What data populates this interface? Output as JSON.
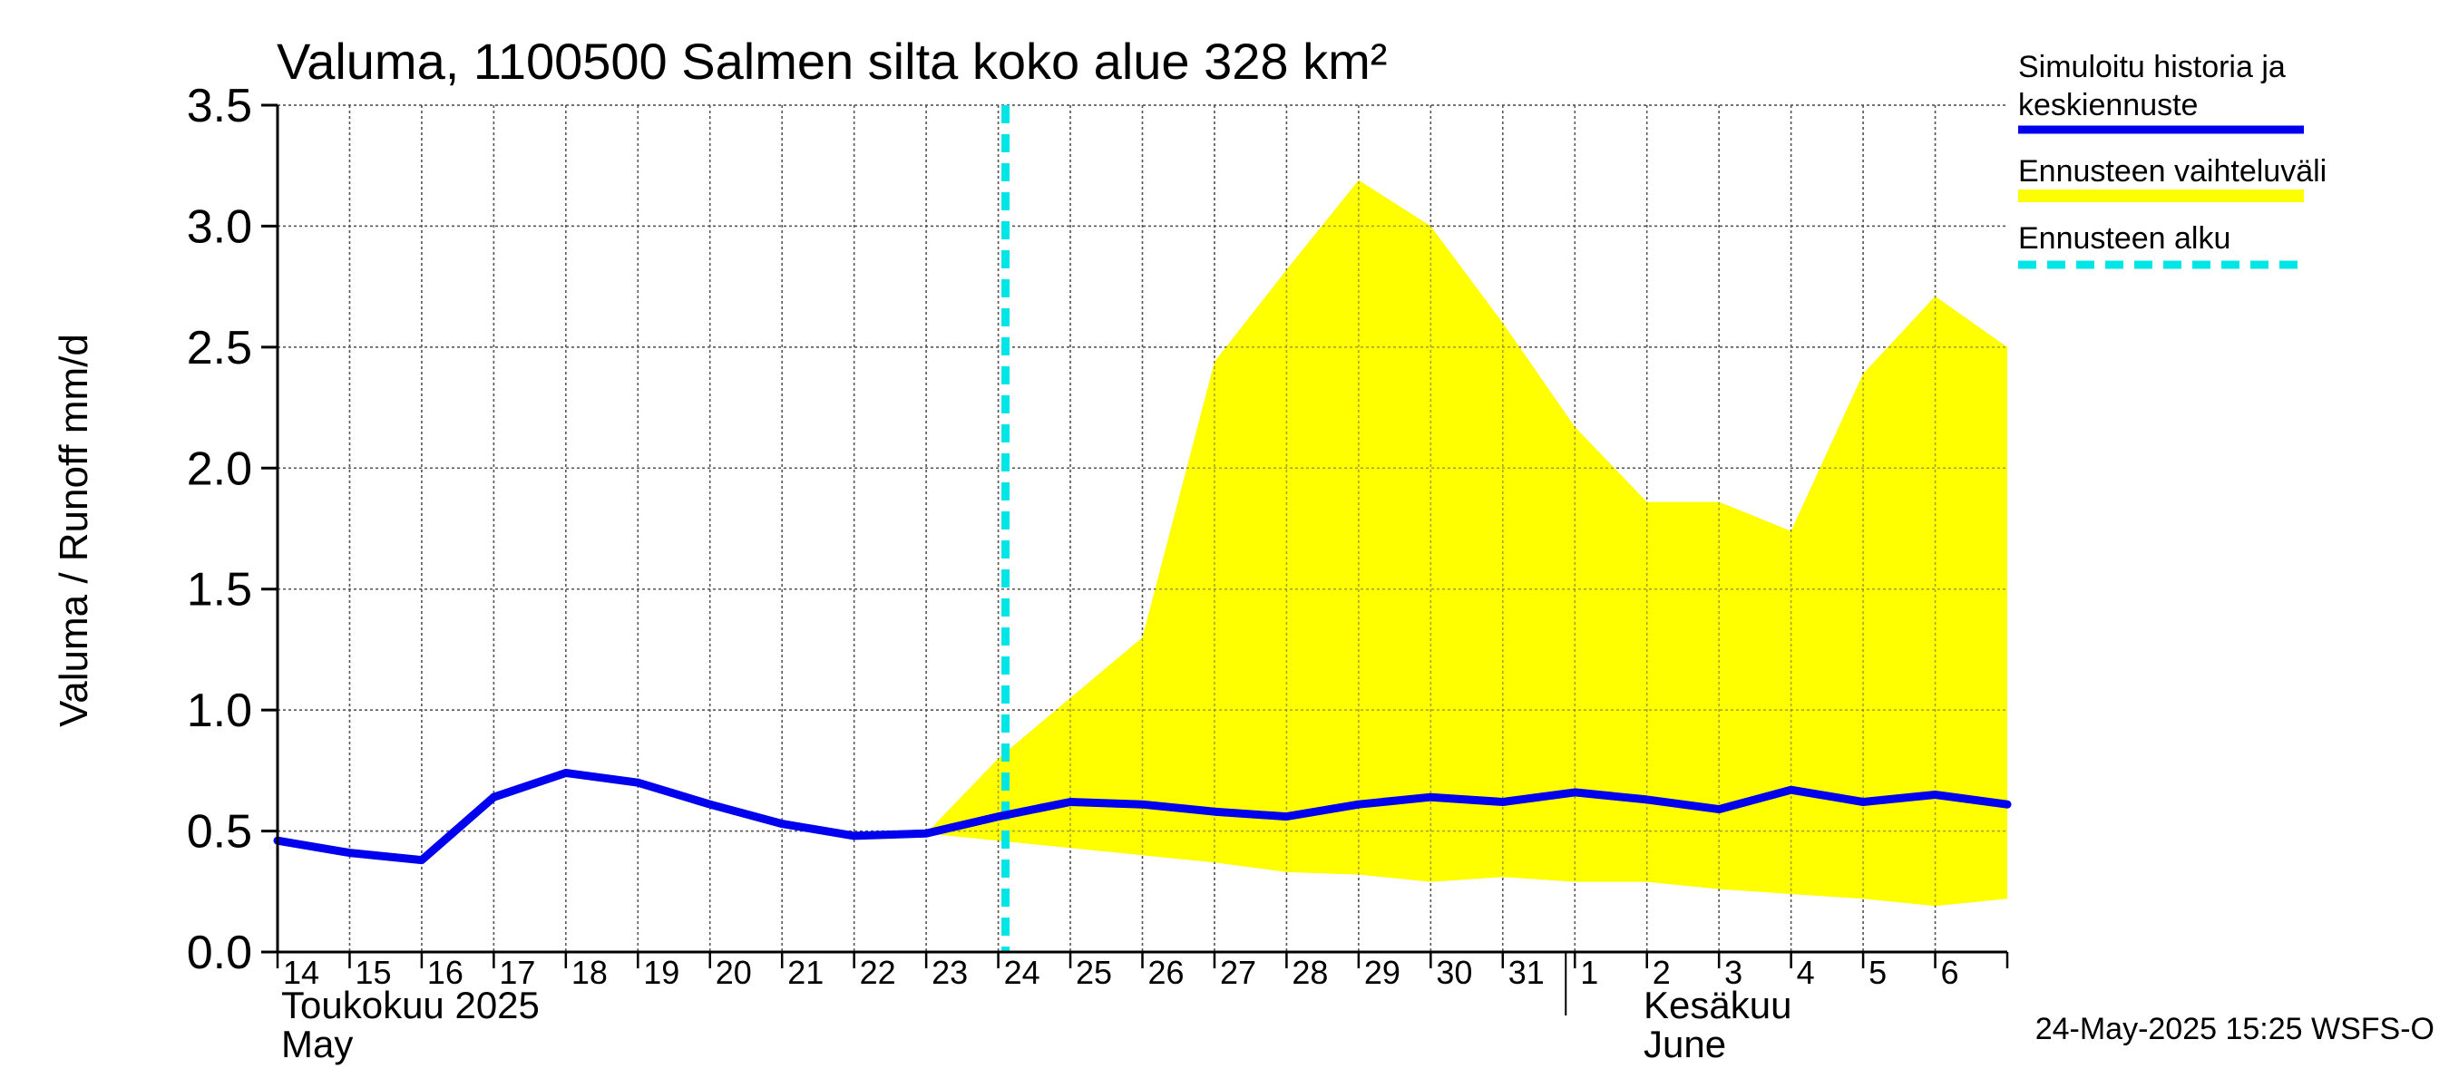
{
  "chart_data": {
    "type": "area",
    "title": "Valuma, 1100500 Salmen silta koko alue 328 km²",
    "ylabel": "Valuma / Runoff     mm/d",
    "ylim": [
      0,
      3.5
    ],
    "yticks": [
      "0.0",
      "0.5",
      "1.0",
      "1.5",
      "2.0",
      "2.5",
      "3.0",
      "3.5"
    ],
    "xlim": [
      0,
      24
    ],
    "x_day_labels": [
      "14",
      "15",
      "16",
      "17",
      "18",
      "19",
      "20",
      "21",
      "22",
      "23",
      "24",
      "25",
      "26",
      "27",
      "28",
      "29",
      "30",
      "31",
      "1",
      "2",
      "3",
      "4",
      "5",
      "6"
    ],
    "month_labels": {
      "may_fi": "Toukokuu  2025",
      "may_en": "May",
      "june_fi": "Kesäkuu",
      "june_en": "June"
    },
    "month_boundary_x": 18,
    "forecast_start_x": 10,
    "series": [
      {
        "name": "Simuloitu historia ja keskiennuste",
        "color": "#0000ee",
        "x": [
          0,
          1,
          2,
          3,
          4,
          5,
          6,
          7,
          8,
          9,
          10,
          11,
          12,
          13,
          14,
          15,
          16,
          17,
          18,
          19,
          20,
          21,
          22,
          23,
          24
        ],
        "y": [
          0.46,
          0.41,
          0.38,
          0.64,
          0.74,
          0.7,
          0.61,
          0.53,
          0.48,
          0.49,
          0.56,
          0.62,
          0.61,
          0.58,
          0.56,
          0.61,
          0.64,
          0.62,
          0.66,
          0.63,
          0.59,
          0.67,
          0.62,
          0.65,
          0.61
        ]
      },
      {
        "name": "Ennusteen vaihteluväli",
        "color": "#ffff00",
        "x": [
          9,
          10,
          11,
          12,
          13,
          14,
          15,
          16,
          17,
          18,
          19,
          20,
          21,
          22,
          23,
          24
        ],
        "upper": [
          0.49,
          0.8,
          1.05,
          1.3,
          2.44,
          2.82,
          3.19,
          3.0,
          2.6,
          2.17,
          1.86,
          1.86,
          1.74,
          2.39,
          2.71,
          2.5
        ],
        "lower": [
          0.49,
          0.46,
          0.43,
          0.4,
          0.37,
          0.33,
          0.32,
          0.29,
          0.31,
          0.29,
          0.29,
          0.26,
          0.24,
          0.22,
          0.19,
          0.22
        ]
      }
    ],
    "legend": {
      "position": "top-right",
      "entries": [
        {
          "label_line1": "Simuloitu historia ja",
          "label_line2": "keskiennuste",
          "color": "#0000ee",
          "style": "solid"
        },
        {
          "label": "Ennusteen vaihteluväli",
          "color": "#ffff00",
          "style": "solid"
        },
        {
          "label": "Ennusteen alku",
          "color": "#00e5e5",
          "style": "dashed"
        }
      ]
    },
    "timestamp": "24-May-2025 15:25 WSFS-O"
  }
}
